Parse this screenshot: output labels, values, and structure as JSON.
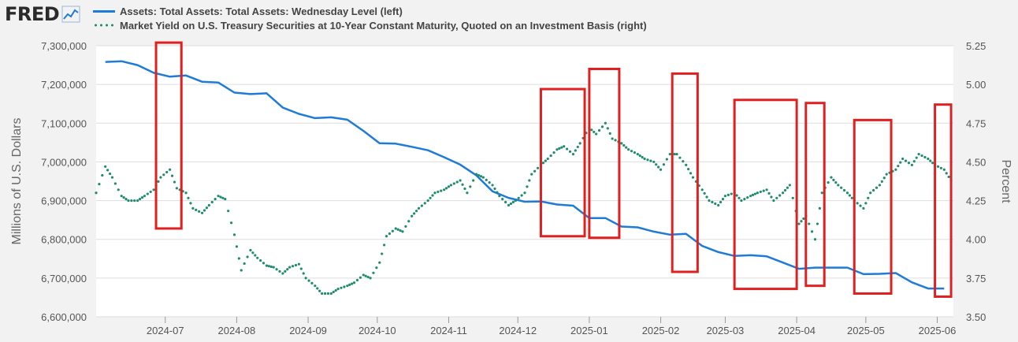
{
  "logo": {
    "text": "FRED",
    "icon": "chart-line-icon"
  },
  "colors": {
    "assets": "#1f7bd8",
    "yield": "#1f8c6e",
    "highlight": "#e02020",
    "grid": "#dddddd",
    "plot_bg": "#ffffff",
    "page_bg": "#f2f2f2"
  },
  "chart_data": {
    "type": "line",
    "legend": [
      "Assets: Total Assets: Total Assets: Wednesday Level (left)",
      "Market Yield on U.S. Treasury Securities at 10-Year Constant Maturity, Quoted on an Investment Basis (right)"
    ],
    "ylabel_left": "Millions of U.S. Dollars",
    "ylabel_right": "Percent",
    "ylim_left": [
      6600000,
      7300000
    ],
    "ylim_right": [
      3.5,
      5.25
    ],
    "yticks_left": [
      "7,300,000",
      "7,200,000",
      "7,100,000",
      "7,000,000",
      "6,900,000",
      "6,800,000",
      "6,700,000",
      "6,600,000"
    ],
    "yticks_left_values": [
      7300000,
      7200000,
      7100000,
      7000000,
      6900000,
      6800000,
      6700000,
      6600000
    ],
    "yticks_right": [
      "5.25",
      "5.00",
      "4.75",
      "4.50",
      "4.25",
      "4.00",
      "3.75",
      "3.50"
    ],
    "yticks_right_values": [
      5.25,
      5.0,
      4.75,
      4.5,
      4.25,
      4.0,
      3.75,
      3.5
    ],
    "x_start": "2024-06-01",
    "x_end": "2025-06-08",
    "xticks": [
      "2024-07",
      "2024-08",
      "2024-09",
      "2024-10",
      "2024-11",
      "2024-12",
      "2025-01",
      "2025-02",
      "2025-03",
      "2025-04",
      "2025-05",
      "2025-06"
    ],
    "xticks_dates": [
      "2024-07-01",
      "2024-08-01",
      "2024-09-01",
      "2024-10-01",
      "2024-11-01",
      "2024-12-01",
      "2025-01-01",
      "2025-02-01",
      "2025-03-01",
      "2025-04-01",
      "2025-05-01",
      "2025-06-01"
    ],
    "series": [
      {
        "name": "Assets: Total Assets: Total Assets: Wednesday Level (left)",
        "axis": "left",
        "style": "solid",
        "x": [
          "2024-06-05",
          "2024-06-12",
          "2024-06-19",
          "2024-06-26",
          "2024-07-03",
          "2024-07-10",
          "2024-07-17",
          "2024-07-24",
          "2024-07-31",
          "2024-08-07",
          "2024-08-14",
          "2024-08-21",
          "2024-08-28",
          "2024-09-04",
          "2024-09-11",
          "2024-09-18",
          "2024-09-25",
          "2024-10-02",
          "2024-10-09",
          "2024-10-16",
          "2024-10-23",
          "2024-10-30",
          "2024-11-06",
          "2024-11-13",
          "2024-11-20",
          "2024-11-27",
          "2024-12-04",
          "2024-12-11",
          "2024-12-18",
          "2024-12-25",
          "2025-01-01",
          "2025-01-08",
          "2025-01-15",
          "2025-01-22",
          "2025-01-29",
          "2025-02-05",
          "2025-02-12",
          "2025-02-19",
          "2025-02-26",
          "2025-03-05",
          "2025-03-12",
          "2025-03-19",
          "2025-03-26",
          "2025-04-02",
          "2025-04-09",
          "2025-04-16",
          "2025-04-23",
          "2025-04-30",
          "2025-05-07",
          "2025-05-14",
          "2025-05-21",
          "2025-05-28",
          "2025-06-04"
        ],
        "values": [
          7258000,
          7260000,
          7250000,
          7230000,
          7220000,
          7223000,
          7207000,
          7205000,
          7179000,
          7175000,
          7177000,
          7140000,
          7124000,
          7113000,
          7115000,
          7109000,
          7080000,
          7048000,
          7047000,
          7039000,
          7030000,
          7012000,
          6993000,
          6965000,
          6924000,
          6907000,
          6897000,
          6898000,
          6890000,
          6887000,
          6855000,
          6855000,
          6833000,
          6831000,
          6820000,
          6812000,
          6814000,
          6783000,
          6767000,
          6757000,
          6759000,
          6756000,
          6740000,
          6724000,
          6727000,
          6727000,
          6727000,
          6710000,
          6711000,
          6713000,
          6689000,
          6673000,
          6673000
        ]
      },
      {
        "name": "Market Yield on U.S. Treasury Securities at 10-Year Constant Maturity, Quoted on an Investment Basis (right)",
        "axis": "right",
        "style": "dotted",
        "x": [
          "2024-06-01",
          "2024-06-05",
          "2024-06-08",
          "2024-06-12",
          "2024-06-15",
          "2024-06-19",
          "2024-06-22",
          "2024-06-26",
          "2024-06-29",
          "2024-07-03",
          "2024-07-06",
          "2024-07-10",
          "2024-07-13",
          "2024-07-17",
          "2024-07-20",
          "2024-07-24",
          "2024-07-27",
          "2024-07-31",
          "2024-08-03",
          "2024-08-07",
          "2024-08-10",
          "2024-08-14",
          "2024-08-17",
          "2024-08-21",
          "2024-08-24",
          "2024-08-28",
          "2024-08-31",
          "2024-09-04",
          "2024-09-07",
          "2024-09-11",
          "2024-09-14",
          "2024-09-18",
          "2024-09-21",
          "2024-09-25",
          "2024-09-28",
          "2024-10-02",
          "2024-10-05",
          "2024-10-09",
          "2024-10-12",
          "2024-10-16",
          "2024-10-19",
          "2024-10-23",
          "2024-10-26",
          "2024-10-30",
          "2024-11-02",
          "2024-11-06",
          "2024-11-09",
          "2024-11-13",
          "2024-11-16",
          "2024-11-20",
          "2024-11-23",
          "2024-11-27",
          "2024-11-30",
          "2024-12-04",
          "2024-12-07",
          "2024-12-11",
          "2024-12-14",
          "2024-12-18",
          "2024-12-21",
          "2024-12-25",
          "2024-12-28",
          "2025-01-01",
          "2025-01-04",
          "2025-01-08",
          "2025-01-11",
          "2025-01-15",
          "2025-01-18",
          "2025-01-22",
          "2025-01-25",
          "2025-01-29",
          "2025-02-01",
          "2025-02-05",
          "2025-02-08",
          "2025-02-12",
          "2025-02-15",
          "2025-02-19",
          "2025-02-22",
          "2025-02-26",
          "2025-03-01",
          "2025-03-05",
          "2025-03-08",
          "2025-03-12",
          "2025-03-15",
          "2025-03-19",
          "2025-03-22",
          "2025-03-26",
          "2025-03-29",
          "2025-04-02",
          "2025-04-05",
          "2025-04-09",
          "2025-04-12",
          "2025-04-16",
          "2025-04-19",
          "2025-04-23",
          "2025-04-26",
          "2025-04-30",
          "2025-05-03",
          "2025-05-07",
          "2025-05-10",
          "2025-05-14",
          "2025-05-17",
          "2025-05-21",
          "2025-05-24",
          "2025-05-28",
          "2025-05-31",
          "2025-06-04",
          "2025-06-07"
        ],
        "values": [
          4.3,
          4.47,
          4.4,
          4.28,
          4.25,
          4.25,
          4.28,
          4.32,
          4.4,
          4.45,
          4.33,
          4.3,
          4.2,
          4.17,
          4.22,
          4.28,
          4.26,
          4.03,
          3.8,
          3.93,
          3.88,
          3.83,
          3.82,
          3.78,
          3.82,
          3.84,
          3.75,
          3.7,
          3.65,
          3.65,
          3.68,
          3.7,
          3.72,
          3.77,
          3.75,
          3.85,
          4.02,
          4.07,
          4.05,
          4.15,
          4.2,
          4.25,
          4.3,
          4.32,
          4.35,
          4.38,
          4.3,
          4.42,
          4.4,
          4.35,
          4.28,
          4.22,
          4.25,
          4.3,
          4.42,
          4.48,
          4.52,
          4.58,
          4.6,
          4.55,
          4.62,
          4.72,
          4.68,
          4.75,
          4.65,
          4.62,
          4.58,
          4.55,
          4.52,
          4.5,
          4.45,
          4.55,
          4.55,
          4.48,
          4.4,
          4.32,
          4.25,
          4.22,
          4.28,
          4.3,
          4.25,
          4.28,
          4.3,
          4.32,
          4.25,
          4.3,
          4.35,
          4.1,
          4.15,
          4.0,
          4.3,
          4.4,
          4.35,
          4.3,
          4.25,
          4.2,
          4.3,
          4.35,
          4.42,
          4.45,
          4.52,
          4.48,
          4.55,
          4.52,
          4.48,
          4.45,
          4.38
        ]
      }
    ],
    "highlight_boxes_x": [
      [
        "2024-06-27",
        "2024-07-08"
      ],
      [
        "2024-12-11",
        "2024-12-30"
      ],
      [
        "2025-01-01",
        "2025-01-14"
      ],
      [
        "2025-02-06",
        "2025-02-17"
      ],
      [
        "2025-03-05",
        "2025-04-01"
      ],
      [
        "2025-04-05",
        "2025-04-13"
      ],
      [
        "2025-04-26",
        "2025-05-12"
      ],
      [
        "2025-05-31",
        "2025-06-07"
      ]
    ],
    "highlight_boxes_y_right": [
      [
        4.07,
        5.27
      ],
      [
        4.02,
        4.97
      ],
      [
        4.01,
        5.1
      ],
      [
        3.79,
        5.07
      ],
      [
        3.68,
        4.9
      ],
      [
        3.7,
        4.88
      ],
      [
        3.65,
        4.77
      ],
      [
        3.63,
        4.87
      ]
    ]
  }
}
